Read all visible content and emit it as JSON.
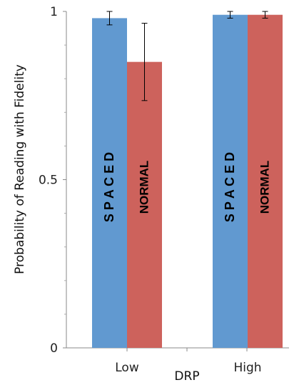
{
  "chart_data": {
    "type": "bar",
    "title": "",
    "xlabel": "DRP",
    "ylabel": "Probability of Reading with Fidelity",
    "categories": [
      "Low",
      "High"
    ],
    "ylim": [
      0,
      1
    ],
    "yticks": [
      "0",
      "0.5",
      "1"
    ],
    "grid": false,
    "series": [
      {
        "name": "SPACED",
        "bar_text": "S P A C E D",
        "color": "#6199d0",
        "values": [
          0.98,
          0.99
        ],
        "error_low": [
          0.96,
          0.98
        ],
        "error_high": [
          1.0,
          1.0
        ]
      },
      {
        "name": "NORMAL",
        "bar_text": "NORMAL",
        "color": "#cd625c",
        "values": [
          0.85,
          0.99
        ],
        "error_low": [
          0.735,
          0.98
        ],
        "error_high": [
          0.965,
          1.0
        ]
      }
    ]
  }
}
